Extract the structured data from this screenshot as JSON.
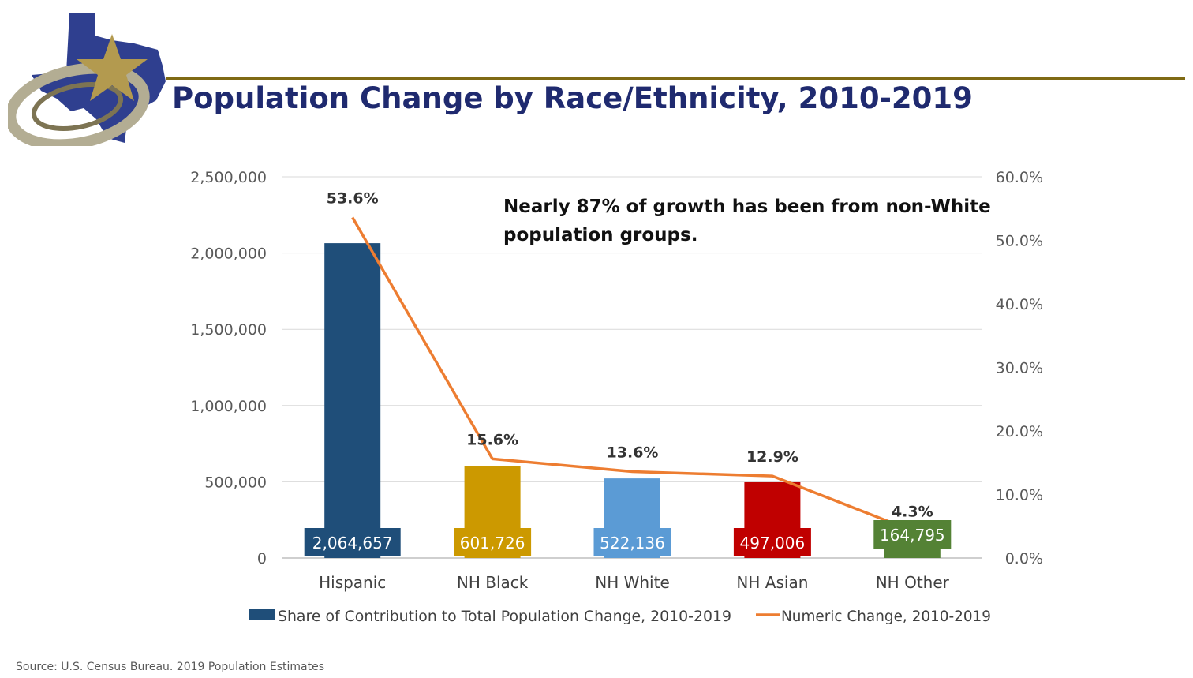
{
  "page": {
    "title": "Population Change by Race/Ethnicity, 2010-2019",
    "source": "Source: U.S. Census Bureau. 2019 Population Estimates",
    "annotation": "Nearly 87% of growth has been from non-White population groups."
  },
  "chart_data": {
    "type": "bar",
    "categories": [
      "Hispanic",
      "NH Black",
      "NH White",
      "NH Asian",
      "NH Other"
    ],
    "series": [
      {
        "name": "Share of Contribution to Total Population Change, 2010-2019",
        "kind": "bar",
        "axis": "left",
        "values": [
          2064657,
          601726,
          522136,
          497006,
          164795
        ],
        "labels": [
          "2,064,657",
          "601,726",
          "522,136",
          "497,006",
          "164,795"
        ],
        "colors": [
          "#1f4e79",
          "#cc9900",
          "#5b9bd5",
          "#c00000",
          "#548235"
        ]
      },
      {
        "name": "Numeric Change, 2010-2019",
        "kind": "line",
        "axis": "right",
        "values": [
          53.6,
          15.6,
          13.6,
          12.9,
          4.3
        ],
        "labels": [
          "53.6%",
          "15.6%",
          "13.6%",
          "12.9%",
          "4.3%"
        ],
        "color": "#ed7d31"
      }
    ],
    "y_left": {
      "range": [
        0,
        2500000
      ],
      "ticks": [
        0,
        500000,
        1000000,
        1500000,
        2000000,
        2500000
      ],
      "tick_labels": [
        "0",
        "500,000",
        "1,000,000",
        "1,500,000",
        "2,000,000",
        "2,500,000"
      ]
    },
    "y_right": {
      "range": [
        0,
        60
      ],
      "ticks": [
        0,
        10,
        20,
        30,
        40,
        50,
        60
      ],
      "tick_labels": [
        "0.0%",
        "10.0%",
        "20.0%",
        "30.0%",
        "40.0%",
        "50.0%",
        "60.0%"
      ]
    },
    "grid": true,
    "legend": "bottom"
  }
}
